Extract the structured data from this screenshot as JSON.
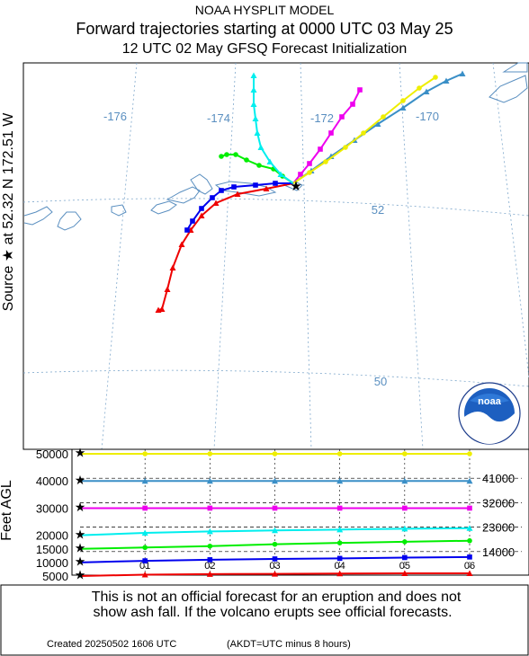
{
  "header": {
    "line1": "NOAA HYSPLIT MODEL",
    "line2": "Forward trajectories starting at 0000 UTC 03 May 25",
    "line3": "12 UTC 02 May    GFSQ  Forecast Initialization"
  },
  "source_label": "Source ★   at    52.32 N   172.51 W",
  "map": {
    "longitude_labels": [
      "-176",
      "-174",
      "-172",
      "-170"
    ],
    "latitude_labels": [
      "52",
      "50"
    ],
    "source_point": {
      "lat": 52.32,
      "lon": -172.51
    }
  },
  "logo": {
    "text": "noaa",
    "ring_text": "NATIONAL OCEANIC AND ATMOSPHERIC ADMINISTRATION"
  },
  "height_axis": {
    "title": "Feet AGL",
    "left_ticks": [
      "50000",
      "40000",
      "30000",
      "20000",
      "15000",
      "10000",
      "5000"
    ],
    "right_ticks": [
      "41000",
      "32000",
      "23000",
      "14000"
    ],
    "time_ticks": [
      "01",
      "02",
      "03",
      "04",
      "05",
      "06"
    ]
  },
  "colors": {
    "red": "#ee0000",
    "blue": "#0000ee",
    "green": "#00ee00",
    "cyan": "#00eeee",
    "magenta": "#ee00ee",
    "steelblue": "#3a8fc7",
    "yellow": "#eeee00",
    "map_text": "#5a8fc0",
    "coast": "#5a8fc0"
  },
  "trajectories": [
    {
      "color": "red",
      "marker": "triangle",
      "start_ft": 5000,
      "heights_ft": [
        5000,
        5500,
        5700,
        5800,
        5900,
        6000,
        6000
      ]
    },
    {
      "color": "blue",
      "marker": "square",
      "start_ft": 10000,
      "heights_ft": [
        10000,
        10600,
        11000,
        11300,
        11500,
        11800,
        12000
      ]
    },
    {
      "color": "green",
      "marker": "circle",
      "start_ft": 15000,
      "heights_ft": [
        15000,
        15500,
        16000,
        16700,
        17200,
        17600,
        18000
      ]
    },
    {
      "color": "cyan",
      "marker": "triangle",
      "start_ft": 20000,
      "heights_ft": [
        20000,
        20900,
        21400,
        21800,
        22100,
        22400,
        22600
      ]
    },
    {
      "color": "magenta",
      "marker": "square",
      "start_ft": 30000,
      "heights_ft": [
        30000,
        30000,
        30000,
        30000,
        30000,
        30000,
        30000
      ]
    },
    {
      "color": "steelblue",
      "marker": "triangle",
      "start_ft": 40000,
      "heights_ft": [
        40000,
        40000,
        40000,
        40000,
        40000,
        40000,
        40000
      ]
    },
    {
      "color": "yellow",
      "marker": "circle",
      "start_ft": 50000,
      "heights_ft": [
        50000,
        50000,
        50000,
        50000,
        50000,
        50000,
        50000
      ]
    }
  ],
  "disclaimer": {
    "line1": "This is not an official forecast for an eruption and does not",
    "line2": "show ash fall. If the volcano erupts see official forecasts."
  },
  "footer": {
    "created": "Created 20250502 1606 UTC",
    "note": "(AKDT=UTC minus 8 hours)"
  }
}
